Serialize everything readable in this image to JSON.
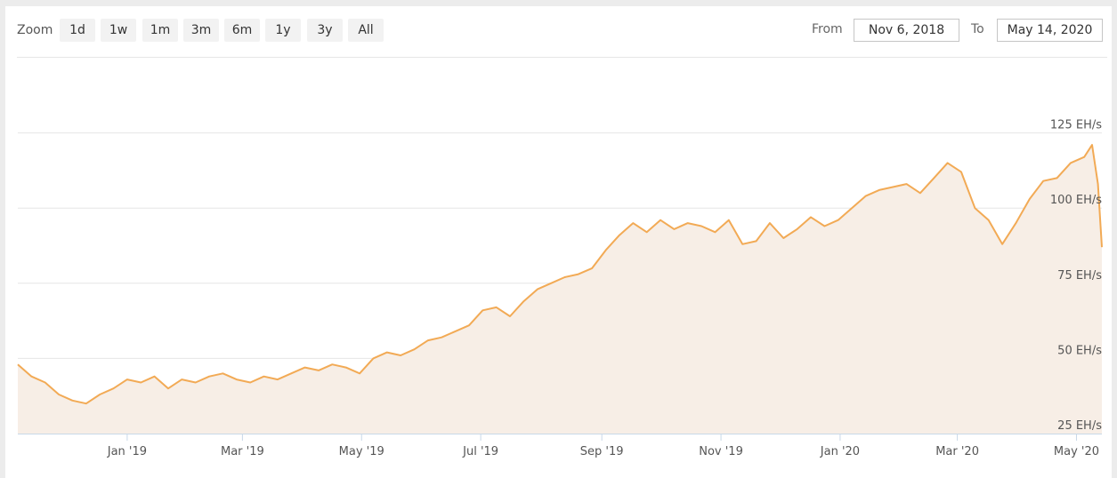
{
  "toolbar": {
    "zoom_label": "Zoom",
    "zoom_buttons": [
      "1d",
      "1w",
      "1m",
      "3m",
      "6m",
      "1y",
      "3y",
      "All"
    ],
    "from_label": "From",
    "from_value": "Nov 6, 2018",
    "to_label": "To",
    "to_value": "May 14, 2020"
  },
  "colors": {
    "line": "#f2aa55",
    "area_fill": "#f7eee6",
    "grid": "#e6e6e6",
    "axis": "#c8d8e8"
  },
  "chart_data": {
    "type": "area",
    "x_axis_type": "datetime",
    "x_ticks": [
      "Jan '19",
      "Mar '19",
      "May '19",
      "Jul '19",
      "Sep '19",
      "Nov '19",
      "Jan '20",
      "Mar '20",
      "May '20"
    ],
    "x_tick_dates": [
      "2019-01-01",
      "2019-03-01",
      "2019-05-01",
      "2019-07-01",
      "2019-09-01",
      "2019-11-01",
      "2020-01-01",
      "2020-03-01",
      "2020-05-01"
    ],
    "x_range": [
      "2018-11-06",
      "2020-05-14"
    ],
    "y_ticks": [
      "25 EH/s",
      "50 EH/s",
      "75 EH/s",
      "100 EH/s",
      "125 EH/s"
    ],
    "y_tick_values": [
      25,
      50,
      75,
      100,
      125
    ],
    "ylim": [
      25,
      150
    ],
    "y_unit": "EH/s",
    "grid": true,
    "series": [
      {
        "x": [
          "2018-11-06",
          "2018-11-13",
          "2018-11-20",
          "2018-11-27",
          "2018-12-04",
          "2018-12-11",
          "2018-12-18",
          "2018-12-25",
          "2019-01-01",
          "2019-01-08",
          "2019-01-15",
          "2019-01-22",
          "2019-01-29",
          "2019-02-05",
          "2019-02-12",
          "2019-02-19",
          "2019-02-26",
          "2019-03-05",
          "2019-03-12",
          "2019-03-19",
          "2019-03-26",
          "2019-04-02",
          "2019-04-09",
          "2019-04-16",
          "2019-04-23",
          "2019-04-30",
          "2019-05-07",
          "2019-05-14",
          "2019-05-21",
          "2019-05-28",
          "2019-06-04",
          "2019-06-11",
          "2019-06-18",
          "2019-06-25",
          "2019-07-02",
          "2019-07-09",
          "2019-07-16",
          "2019-07-23",
          "2019-07-30",
          "2019-08-06",
          "2019-08-13",
          "2019-08-20",
          "2019-08-27",
          "2019-09-03",
          "2019-09-10",
          "2019-09-17",
          "2019-09-24",
          "2019-10-01",
          "2019-10-08",
          "2019-10-15",
          "2019-10-22",
          "2019-10-29",
          "2019-11-05",
          "2019-11-12",
          "2019-11-19",
          "2019-11-26",
          "2019-12-03",
          "2019-12-10",
          "2019-12-17",
          "2019-12-24",
          "2019-12-31",
          "2020-01-07",
          "2020-01-14",
          "2020-01-21",
          "2020-01-28",
          "2020-02-04",
          "2020-02-11",
          "2020-02-18",
          "2020-02-25",
          "2020-03-03",
          "2020-03-10",
          "2020-03-17",
          "2020-03-24",
          "2020-03-31",
          "2020-04-07",
          "2020-04-14",
          "2020-04-21",
          "2020-04-28",
          "2020-05-05",
          "2020-05-09",
          "2020-05-12",
          "2020-05-14"
        ],
        "values": [
          48,
          44,
          42,
          38,
          36,
          35,
          38,
          40,
          43,
          42,
          44,
          40,
          43,
          42,
          44,
          45,
          43,
          42,
          44,
          43,
          45,
          47,
          46,
          48,
          47,
          45,
          50,
          52,
          51,
          53,
          56,
          57,
          59,
          61,
          66,
          67,
          64,
          69,
          73,
          75,
          77,
          78,
          80,
          86,
          91,
          95,
          92,
          96,
          93,
          95,
          94,
          92,
          96,
          88,
          89,
          95,
          90,
          93,
          97,
          94,
          96,
          100,
          104,
          106,
          107,
          108,
          105,
          110,
          115,
          112,
          100,
          96,
          88,
          95,
          103,
          109,
          110,
          115,
          117,
          121,
          108,
          87
        ]
      }
    ]
  }
}
